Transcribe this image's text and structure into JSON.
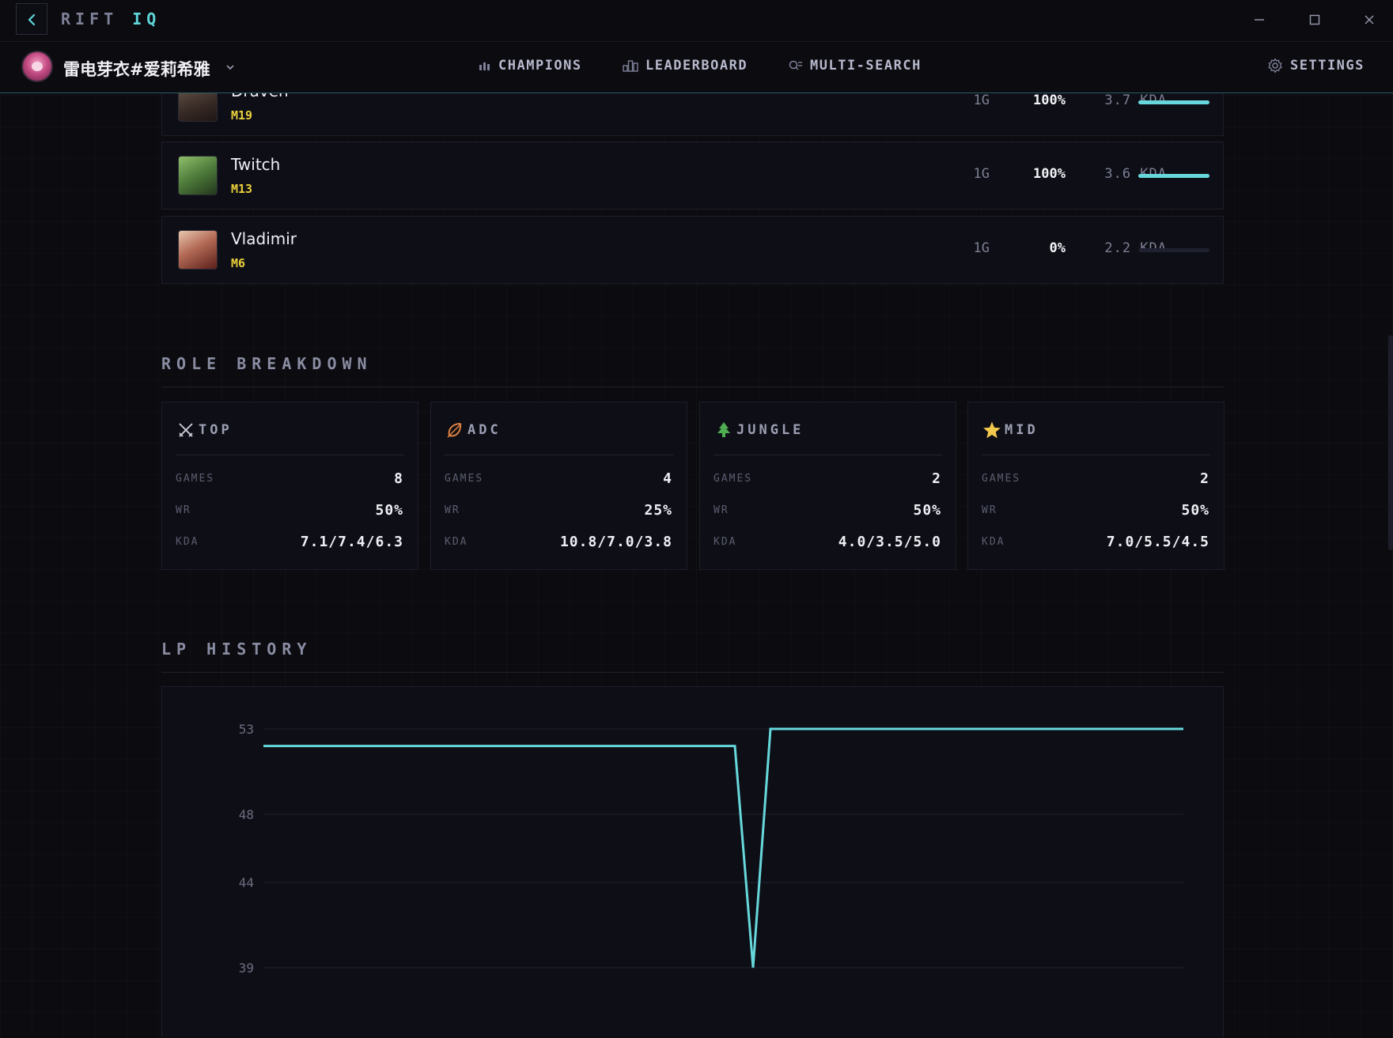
{
  "app": {
    "title_part1": "RIFT",
    "title_part2": "IQ",
    "accent": "#5fd6d9"
  },
  "nav": {
    "player_name": "雷电芽衣#爱莉希雅",
    "links": [
      {
        "label": "CHAMPIONS",
        "icon": "bar-chart-icon"
      },
      {
        "label": "LEADERBOARD",
        "icon": "podium-icon"
      },
      {
        "label": "MULTI-SEARCH",
        "icon": "multi-search-icon"
      }
    ],
    "settings_label": "SETTINGS"
  },
  "champions": [
    {
      "name": "Draven",
      "mastery": "M19",
      "games": "1G",
      "winrate": "100%",
      "winrate_value": 1.0,
      "kda": "3.7 KDA"
    },
    {
      "name": "Twitch",
      "mastery": "M13",
      "games": "1G",
      "winrate": "100%",
      "winrate_value": 1.0,
      "kda": "3.6 KDA"
    },
    {
      "name": "Vladimir",
      "mastery": "M6",
      "games": "1G",
      "winrate": "0%",
      "winrate_value": 0.0,
      "kda": "2.2 KDA"
    }
  ],
  "role_breakdown": {
    "title": "ROLE BREAKDOWN",
    "labels": {
      "games": "GAMES",
      "wr": "WR",
      "kda": "KDA"
    },
    "roles": [
      {
        "name": "TOP",
        "icon": "crossed-swords-icon",
        "games": "8",
        "wr": "50%",
        "kda": "7.1/7.4/6.3"
      },
      {
        "name": "ADC",
        "icon": "bow-icon",
        "games": "4",
        "wr": "25%",
        "kda": "10.8/7.0/3.8"
      },
      {
        "name": "JUNGLE",
        "icon": "tree-icon",
        "games": "2",
        "wr": "50%",
        "kda": "4.0/3.5/5.0"
      },
      {
        "name": "MID",
        "icon": "star-icon",
        "games": "2",
        "wr": "50%",
        "kda": "7.0/5.5/4.5"
      }
    ]
  },
  "lp_history": {
    "title": "LP HISTORY"
  },
  "chart_data": {
    "type": "line",
    "title": "LP HISTORY",
    "xlabel": "",
    "ylabel": "",
    "yticks": [
      "53",
      "48",
      "44",
      "39"
    ],
    "ylim": [
      39,
      53
    ],
    "x": [
      0,
      1,
      2,
      3
    ],
    "series": [
      {
        "values": [
          52,
          52,
          39,
          53
        ]
      }
    ],
    "color": "#66d8dc",
    "grid": true
  }
}
